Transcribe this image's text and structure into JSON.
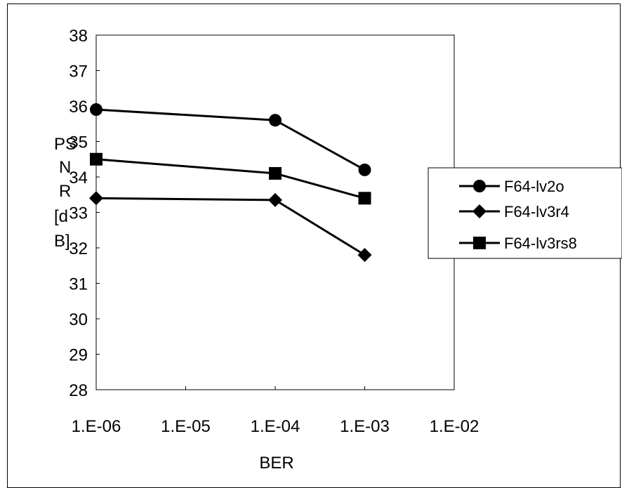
{
  "chart_data": {
    "type": "line",
    "title": "",
    "xlabel": "BER",
    "ylabel_lines": [
      "PS",
      "N",
      "R",
      "[d",
      "B]"
    ],
    "x_tick_labels": [
      "1.E-06",
      "1.E-05",
      "1.E-04",
      "1.E-03",
      "1.E-02"
    ],
    "x_tick_exponents": [
      -6,
      -5,
      -4,
      -3,
      -2
    ],
    "x_scale": "log",
    "xlim": [
      1e-06,
      0.01
    ],
    "ylim": [
      28,
      38
    ],
    "y_ticks": [
      28,
      29,
      30,
      31,
      32,
      33,
      34,
      35,
      36,
      37,
      38
    ],
    "grid": false,
    "legend_position": "right",
    "series": [
      {
        "name": "F64-lv2o",
        "marker": "circle",
        "x": [
          1e-06,
          0.0001,
          0.001
        ],
        "y": [
          35.9,
          35.6,
          34.2
        ]
      },
      {
        "name": "F64-lv3r4",
        "marker": "diamond",
        "x": [
          1e-06,
          0.0001,
          0.001
        ],
        "y": [
          33.4,
          33.35,
          31.8
        ]
      },
      {
        "name": "F64-lv3rs8",
        "marker": "square",
        "x": [
          1e-06,
          0.0001,
          0.001
        ],
        "y": [
          34.5,
          34.1,
          33.4
        ]
      }
    ]
  }
}
